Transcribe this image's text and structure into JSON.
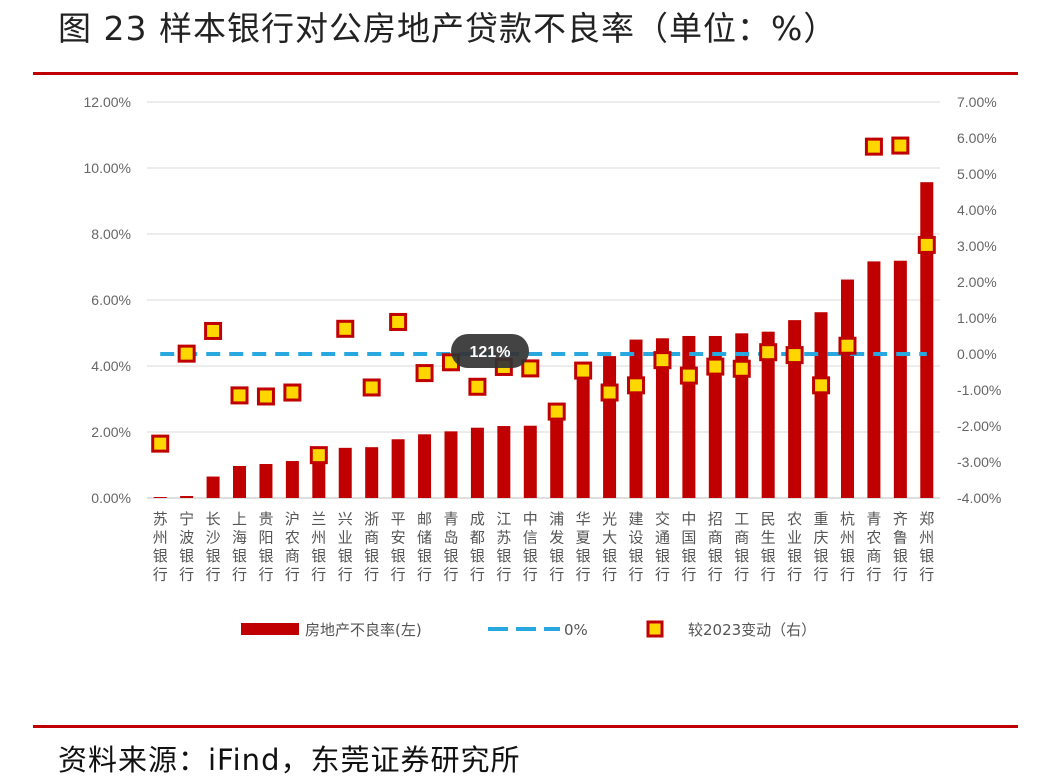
{
  "title": "图 23  样本银行对公房地产贷款不良率（单位：%）",
  "source": "资料来源：iFind，东莞证券研究所",
  "colors": {
    "bar": "#c00000",
    "zero_line": "#29a8e0",
    "marker_fill": "#ffd700",
    "marker_border": "#c00000",
    "rule": "#c00000"
  },
  "chart_data": {
    "type": "bar",
    "categories": [
      "苏州银行",
      "宁波银行",
      "长沙银行",
      "上海银行",
      "贵阳银行",
      "沪农商行",
      "兰州银行",
      "兴业银行",
      "浙商银行",
      "平安银行",
      "邮储银行",
      "青岛银行",
      "成都银行",
      "江苏银行",
      "中信银行",
      "浦发银行",
      "华夏银行",
      "光大银行",
      "建设银行",
      "交通银行",
      "中国银行",
      "招商银行",
      "工商银行",
      "民生银行",
      "农业银行",
      "重庆银行",
      "杭州银行",
      "青农商行",
      "齐鲁银行",
      "郑州银行"
    ],
    "series": [
      {
        "name": "房地产不良率(左)",
        "axis": "left",
        "type": "bar",
        "values": [
          0.03,
          0.06,
          0.65,
          0.97,
          1.03,
          1.12,
          1.22,
          1.52,
          1.54,
          1.78,
          1.93,
          2.02,
          2.13,
          2.18,
          2.19,
          2.58,
          4.0,
          4.3,
          4.8,
          4.84,
          4.91,
          4.91,
          4.99,
          5.04,
          5.39,
          5.63,
          6.62,
          7.17,
          7.19,
          9.57
        ]
      },
      {
        "name": "0%",
        "axis": "right",
        "type": "dashed-line",
        "values": [
          0,
          0,
          0,
          0,
          0,
          0,
          0,
          0,
          0,
          0,
          0,
          0,
          0,
          0,
          0,
          0,
          0,
          0,
          0,
          0,
          0,
          0,
          0,
          0,
          0,
          0,
          0,
          0,
          0,
          0
        ]
      },
      {
        "name": "较2023变动（右）",
        "axis": "right",
        "type": "marker",
        "values": [
          -2.49,
          0.01,
          0.64,
          -1.15,
          -1.18,
          -1.07,
          -2.81,
          0.7,
          -0.93,
          0.89,
          -0.53,
          -0.23,
          -0.91,
          -0.36,
          -0.4,
          -1.6,
          -0.46,
          -1.07,
          -0.87,
          -0.17,
          -0.6,
          -0.35,
          -0.41,
          0.05,
          -0.03,
          -0.87,
          0.23,
          5.76,
          5.79,
          3.03
        ]
      }
    ],
    "left_axis": {
      "ylim": [
        0,
        12
      ],
      "ticks": [
        "0.00%",
        "2.00%",
        "4.00%",
        "6.00%",
        "8.00%",
        "10.00%",
        "12.00%"
      ]
    },
    "right_axis": {
      "ylim": [
        -4,
        7
      ],
      "ticks": [
        "-4.00%",
        "-3.00%",
        "-2.00%",
        "-1.00%",
        "0.00%",
        "1.00%",
        "2.00%",
        "3.00%",
        "4.00%",
        "5.00%",
        "6.00%",
        "7.00%"
      ]
    },
    "grid": true,
    "legend_position": "bottom",
    "annotation": "121%"
  }
}
